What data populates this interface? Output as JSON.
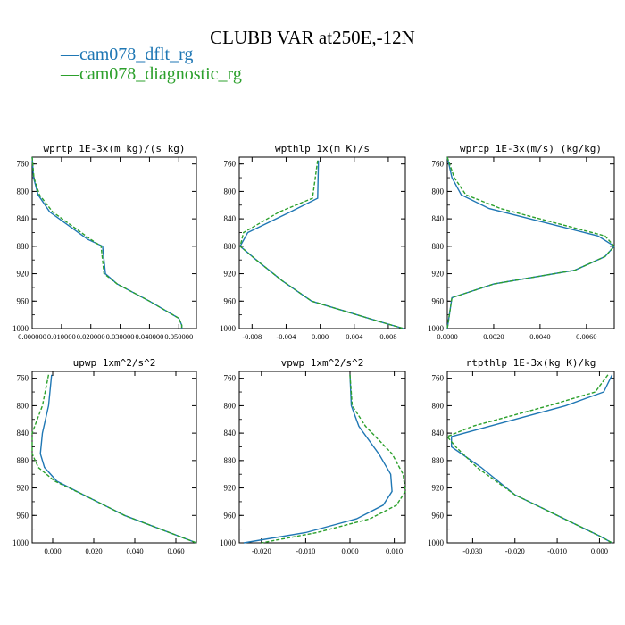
{
  "title": "CLUBB VAR at250E,-12N",
  "colors": {
    "dflt": "#1f77b4",
    "diag": "#2ca02c"
  },
  "legend": [
    {
      "label": "cam078_dflt_rg",
      "color": "#1f77b4",
      "dash": "solid"
    },
    {
      "label": "cam078_diagnostic_rg",
      "color": "#2ca02c",
      "dash": "dashed"
    }
  ],
  "chart_data": [
    {
      "type": "line",
      "title": "wprtp  1E-3x(m kg)/(s kg)",
      "xlim": [
        0.0,
        0.056
      ],
      "ylim": [
        1000,
        750
      ],
      "xticks": [
        0.0,
        0.01,
        0.02,
        0.03,
        0.04,
        0.05
      ],
      "xticklabels": [
        "0.000000",
        "0.010000",
        "0.020000",
        "0.030000",
        "0.040000",
        "0.050000"
      ],
      "yticks": [
        760,
        800,
        840,
        880,
        920,
        960,
        1000
      ],
      "y": [
        750,
        780,
        805,
        830,
        870,
        880,
        900,
        920,
        935,
        960,
        985,
        995,
        1000
      ],
      "series": [
        {
          "name": "cam078_dflt_rg",
          "values": [
            0.0,
            0.0005,
            0.002,
            0.006,
            0.019,
            0.024,
            0.0245,
            0.025,
            0.029,
            0.04,
            0.05,
            0.051,
            0.051
          ]
        },
        {
          "name": "cam078_diagnostic_rg",
          "values": [
            0.0,
            0.0006,
            0.0025,
            0.007,
            0.02,
            0.0235,
            0.024,
            0.0245,
            0.029,
            0.04,
            0.05,
            0.051,
            0.051
          ]
        }
      ]
    },
    {
      "type": "line",
      "title": "wpthlp  1x(m K)/s",
      "xlim": [
        -0.0095,
        0.01
      ],
      "ylim": [
        1000,
        750
      ],
      "xticks": [
        -0.008,
        -0.004,
        0.0,
        0.004,
        0.008
      ],
      "xticklabels": [
        "-0.008",
        "-0.004",
        "0.000",
        "0.004",
        "0.008"
      ],
      "yticks": [
        760,
        800,
        840,
        880,
        920,
        960,
        1000
      ],
      "y": [
        755,
        810,
        830,
        860,
        880,
        900,
        930,
        960,
        990,
        1000
      ],
      "series": [
        {
          "name": "cam078_dflt_rg",
          "values": [
            -0.0002,
            -0.0003,
            -0.0035,
            -0.0085,
            -0.0094,
            -0.0075,
            -0.0045,
            -0.001,
            0.007,
            0.0098
          ]
        },
        {
          "name": "cam078_diagnostic_rg",
          "values": [
            -0.0003,
            -0.0009,
            -0.0048,
            -0.009,
            -0.0094,
            -0.0075,
            -0.0045,
            -0.001,
            0.007,
            0.0098
          ]
        }
      ]
    },
    {
      "type": "line",
      "title": "wprcp  1E-3x(m/s) (kg/kg)",
      "xlim": [
        0.0,
        0.0072
      ],
      "ylim": [
        1000,
        750
      ],
      "xticks": [
        0.0,
        0.002,
        0.004,
        0.006
      ],
      "xticklabels": [
        "0.0000",
        "0.0020",
        "0.0040",
        "0.0060"
      ],
      "yticks": [
        760,
        800,
        840,
        880,
        920,
        960,
        1000
      ],
      "y": [
        750,
        780,
        805,
        825,
        865,
        880,
        895,
        915,
        935,
        955,
        1000
      ],
      "series": [
        {
          "name": "cam078_dflt_rg",
          "values": [
            0.0,
            0.0002,
            0.0006,
            0.0018,
            0.0065,
            0.0072,
            0.0068,
            0.0055,
            0.002,
            0.0002,
            0.0
          ]
        },
        {
          "name": "cam078_diagnostic_rg",
          "values": [
            0.0,
            0.0003,
            0.0008,
            0.0023,
            0.0068,
            0.0072,
            0.0068,
            0.0055,
            0.002,
            0.0002,
            0.0
          ]
        }
      ]
    },
    {
      "type": "line",
      "title": "upwp  1xm^2/s^2",
      "xlim": [
        -0.01,
        0.07
      ],
      "ylim": [
        1000,
        750
      ],
      "xticks": [
        0.0,
        0.02,
        0.04,
        0.06
      ],
      "xticklabels": [
        "0.000",
        "0.020",
        "0.040",
        "0.060"
      ],
      "yticks": [
        760,
        800,
        840,
        880,
        920,
        960,
        1000
      ],
      "y": [
        755,
        800,
        840,
        870,
        890,
        910,
        930,
        960,
        1000
      ],
      "series": [
        {
          "name": "cam078_dflt_rg",
          "values": [
            -0.0005,
            -0.002,
            -0.005,
            -0.006,
            -0.004,
            0.002,
            0.015,
            0.035,
            0.07
          ]
        },
        {
          "name": "cam078_diagnostic_rg",
          "values": [
            -0.002,
            -0.005,
            -0.01,
            -0.01,
            -0.007,
            0.001,
            0.015,
            0.035,
            0.07
          ]
        }
      ]
    },
    {
      "type": "line",
      "title": "vpwp  1xm^2/s^2",
      "xlim": [
        -0.025,
        0.0125
      ],
      "ylim": [
        1000,
        750
      ],
      "xticks": [
        -0.02,
        -0.01,
        0.0,
        0.01
      ],
      "xticklabels": [
        "-0.020",
        "-0.010",
        "0.000",
        "0.010"
      ],
      "yticks": [
        760,
        800,
        840,
        880,
        920,
        960,
        1000
      ],
      "y": [
        755,
        800,
        830,
        870,
        900,
        925,
        945,
        965,
        985,
        1000
      ],
      "series": [
        {
          "name": "cam078_dflt_rg",
          "values": [
            0.0,
            0.0003,
            0.002,
            0.0065,
            0.0092,
            0.0095,
            0.0075,
            0.0015,
            -0.01,
            -0.024
          ]
        },
        {
          "name": "cam078_diagnostic_rg",
          "values": [
            0.0,
            0.0005,
            0.0035,
            0.0095,
            0.012,
            0.0125,
            0.0105,
            0.0045,
            -0.0075,
            -0.02
          ]
        }
      ]
    },
    {
      "type": "line",
      "title": "rtpthlp  1E-3x(kg K)/kg",
      "xlim": [
        -0.036,
        0.0035
      ],
      "ylim": [
        1000,
        750
      ],
      "xticks": [
        -0.03,
        -0.02,
        -0.01,
        0.0
      ],
      "xticklabels": [
        "-0.030",
        "-0.020",
        "-0.010",
        "0.000"
      ],
      "yticks": [
        760,
        800,
        840,
        880,
        920,
        960,
        1000
      ],
      "y": [
        755,
        780,
        800,
        830,
        845,
        860,
        890,
        930,
        960,
        990,
        1000
      ],
      "series": [
        {
          "name": "cam078_dflt_rg",
          "values": [
            0.003,
            0.001,
            -0.008,
            -0.026,
            -0.035,
            -0.035,
            -0.028,
            -0.02,
            -0.01,
            0.0,
            0.003
          ]
        },
        {
          "name": "cam078_diagnostic_rg",
          "values": [
            0.002,
            -0.001,
            -0.012,
            -0.03,
            -0.036,
            -0.034,
            -0.029,
            -0.02,
            -0.01,
            0.0,
            0.003
          ]
        }
      ]
    }
  ]
}
